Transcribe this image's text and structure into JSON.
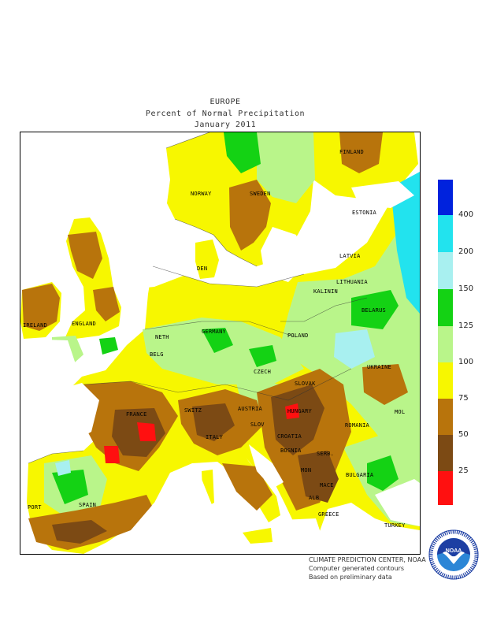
{
  "header": {
    "title": "EUROPE",
    "subtitle": "Percent of Normal Precipitation",
    "period": "January 2011"
  },
  "map": {
    "country_labels": [
      {
        "name": "norway",
        "text": "NORWAY"
      },
      {
        "name": "sweden",
        "text": "SWEDEN"
      },
      {
        "name": "finland",
        "text": "FINLAND"
      },
      {
        "name": "estonia",
        "text": "ESTONIA"
      },
      {
        "name": "latvia",
        "text": "LATVIA"
      },
      {
        "name": "lithuania",
        "text": "LITHUANIA"
      },
      {
        "name": "belarus",
        "text": "BELARUS"
      },
      {
        "name": "ukraine",
        "text": "UKRAINE"
      },
      {
        "name": "denmark",
        "text": "DEN"
      },
      {
        "name": "kaliningrad",
        "text": "KALININ"
      },
      {
        "name": "ireland",
        "text": "IRELAND"
      },
      {
        "name": "england",
        "text": "ENGLAND"
      },
      {
        "name": "netherlands",
        "text": "NETH"
      },
      {
        "name": "belgium",
        "text": "BELG"
      },
      {
        "name": "germany",
        "text": "GERMANY"
      },
      {
        "name": "poland",
        "text": "POLAND"
      },
      {
        "name": "czech",
        "text": "CZECH"
      },
      {
        "name": "slovakia",
        "text": "SLOVAK"
      },
      {
        "name": "france",
        "text": "FRANCE"
      },
      {
        "name": "switzerland",
        "text": "SWITZ"
      },
      {
        "name": "austria",
        "text": "AUSTRIA"
      },
      {
        "name": "hungary",
        "text": "HUNGARY"
      },
      {
        "name": "moldova",
        "text": "MOL"
      },
      {
        "name": "romania",
        "text": "ROMANIA"
      },
      {
        "name": "slovenia",
        "text": "SLOV"
      },
      {
        "name": "croatia",
        "text": "CROATIA"
      },
      {
        "name": "italy",
        "text": "ITALY"
      },
      {
        "name": "bosnia",
        "text": "BOSNIA"
      },
      {
        "name": "serbia",
        "text": "SERB."
      },
      {
        "name": "montenegro",
        "text": "MON"
      },
      {
        "name": "bulgaria",
        "text": "BULGARIA"
      },
      {
        "name": "macedonia",
        "text": "MACE"
      },
      {
        "name": "albania",
        "text": "ALB"
      },
      {
        "name": "greece",
        "text": "GREECE"
      },
      {
        "name": "turkey",
        "text": "TURKEY"
      },
      {
        "name": "portugal",
        "text": "PORT"
      },
      {
        "name": "spain",
        "text": "SPAIN"
      }
    ]
  },
  "legend": {
    "bins": [
      {
        "color": "#0022dd"
      },
      {
        "color": "#22e3ee"
      },
      {
        "color": "#a8f0f0"
      },
      {
        "color": "#14d214"
      },
      {
        "color": "#b9f58a"
      },
      {
        "color": "#f7f700"
      },
      {
        "color": "#b8740c"
      },
      {
        "color": "#7c4a14"
      },
      {
        "color": "#ff1010"
      }
    ],
    "tick_labels": [
      "400",
      "200",
      "150",
      "125",
      "100",
      "75",
      "50",
      "25"
    ]
  },
  "credits": {
    "line1": "CLIMATE PREDICTION CENTER, NOAA",
    "line2": "Computer generated contours",
    "line3": "Based on preliminary data"
  },
  "logo": {
    "center_text": "NOAA",
    "ring_text": "NATIONAL OCEANIC AND ATMOSPHERIC ADMINISTRATION · U.S. DEPARTMENT OF COMMERCE",
    "colors": {
      "ring": "#1d3fa3",
      "inner": "#2b86d6",
      "gull": "#ffffff"
    }
  }
}
